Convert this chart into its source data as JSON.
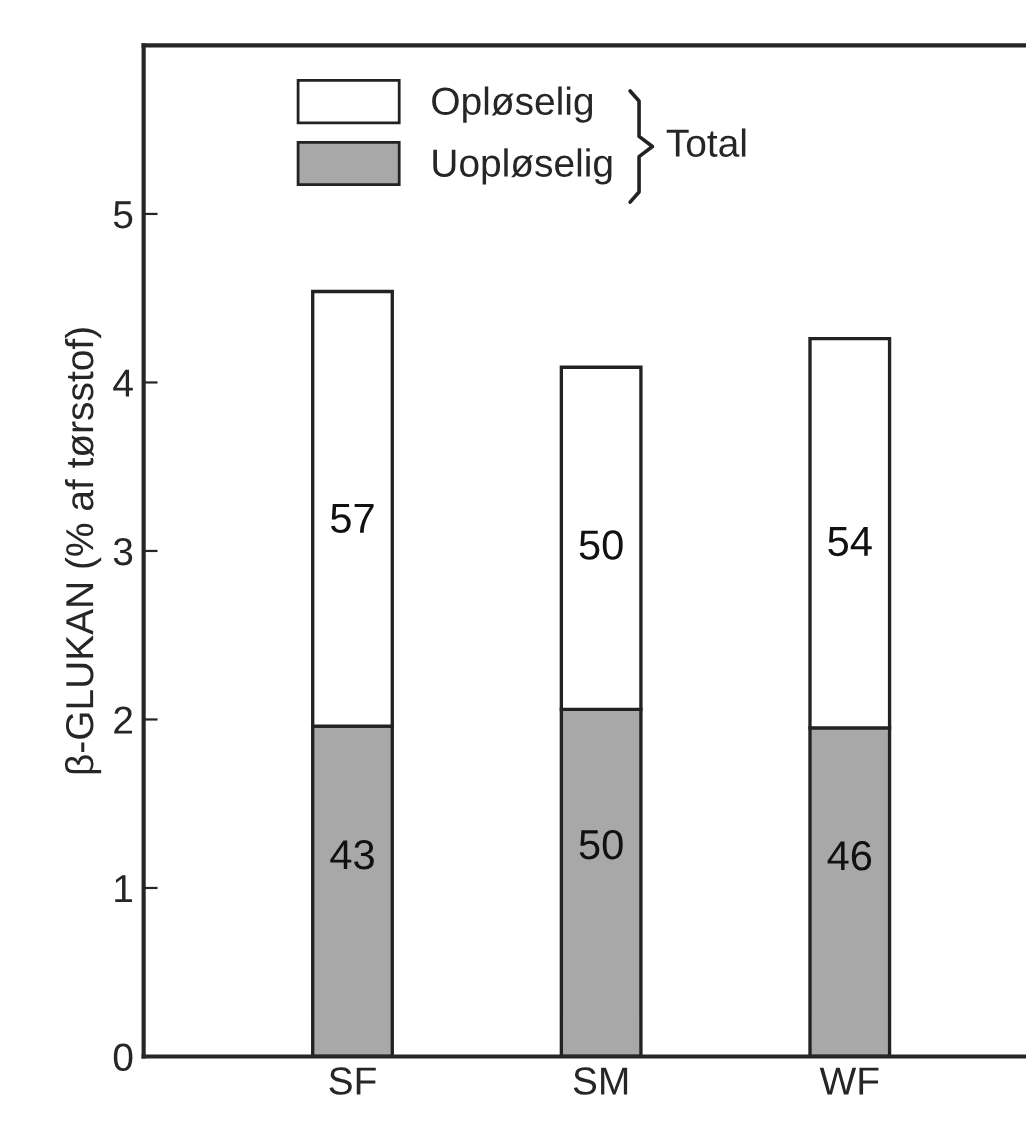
{
  "chart_data": {
    "type": "bar",
    "stacked": true,
    "ylabel": "β-GLUKAN (% af tørsstof)",
    "categories": [
      "SF",
      "SM",
      "WF"
    ],
    "series": [
      {
        "name": "Uopløselig",
        "color": "#a8a8a8",
        "values": [
          1.96,
          2.06,
          1.95
        ]
      },
      {
        "name": "Opløselig",
        "color": "#ffffff",
        "values": [
          2.58,
          2.03,
          2.31
        ]
      }
    ],
    "annotations": [
      "Total",
      "43",
      "50",
      "46",
      "57",
      "50",
      "54"
    ],
    "ylim": [
      0,
      6.0
    ],
    "yticks": [
      0,
      1,
      2,
      3,
      4,
      5
    ],
    "grid": false,
    "legend": "top"
  }
}
